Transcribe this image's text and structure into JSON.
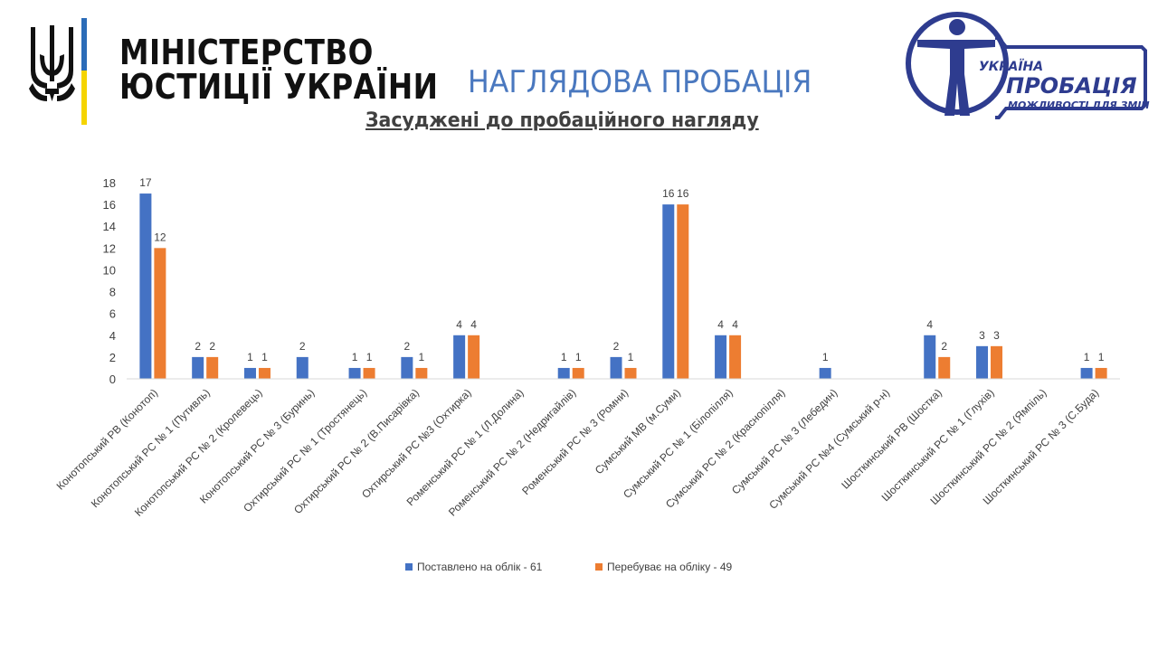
{
  "header": {
    "ministry_line1": "МІНІСТЕРСТВО",
    "ministry_line2": "ЮСТИЦІЇ УКРАЇНИ",
    "title": "НАГЛЯДОВА ПРОБАЦІЯ",
    "subtitle": "Засуджені до пробаційного нагляду"
  },
  "probation_logo": {
    "word1": "УКРАЇНА",
    "word2": "ПРОБАЦІЯ",
    "word3": "МОЖЛИВОСТІ ДЛЯ ЗМІН"
  },
  "colors": {
    "series1": "#4472c4",
    "series2": "#ed7d31",
    "title": "#4a78bf",
    "logo_blue": "#2e3c8f",
    "flag_blue": "#2b6cb8",
    "flag_yellow": "#f5d400"
  },
  "icons": [
    "trident-icon",
    "probation-figure-icon"
  ],
  "chart_data": {
    "type": "bar",
    "title": "",
    "xlabel": "",
    "ylabel": "",
    "ylim": [
      0,
      18
    ],
    "yticks": [
      0,
      2,
      4,
      6,
      8,
      10,
      12,
      14,
      16,
      18
    ],
    "grid": false,
    "legend_position": "bottom",
    "categories": [
      "Конотопський РВ (Конотоп)",
      "Конотопський РС № 1 (Путивль)",
      "Конотопський РС № 2 (Кролевець)",
      "Конотопський РС № 3 (Буринь)",
      "Охтирський РС № 1 (Тростянець)",
      "Охтирський РС № 2 (В.Писарівка)",
      "Охтирський РС №3 (Охтирка)",
      "Роменський РС № 1 (Л.Долина)",
      "Роменський РС № 2 (Недригайлів)",
      "Роменський РС № 3 (Ромни)",
      "Сумський МВ (м.Суми)",
      "Сумський РС № 1 (Білопілля)",
      "Сумський РС № 2 (Краснопілля)",
      "Сумський РС № 3 (Лебедин)",
      "Сумський РС №4 (Сумський р-н)",
      "Шосткинський РВ (Шостка)",
      "Шосткинський РС № 1 (Глухів)",
      "Шосткинський РС № 2 (Ямпіль)",
      "Шосткинський РС № 3 (С.Буда)"
    ],
    "series": [
      {
        "name": "Поставлено на облік - 61",
        "color": "#4472c4",
        "values": [
          17,
          2,
          1,
          2,
          1,
          2,
          4,
          null,
          1,
          2,
          16,
          4,
          null,
          1,
          null,
          4,
          3,
          null,
          1
        ]
      },
      {
        "name": "Перебуває на обліку - 49",
        "color": "#ed7d31",
        "values": [
          12,
          2,
          1,
          null,
          1,
          1,
          4,
          null,
          1,
          1,
          16,
          4,
          null,
          null,
          null,
          2,
          3,
          null,
          1
        ]
      }
    ]
  }
}
